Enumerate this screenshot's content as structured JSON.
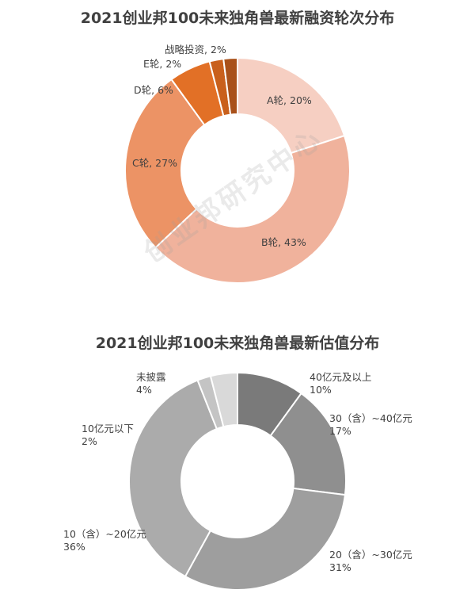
{
  "watermark": "创业邦研究中心",
  "chart_data": [
    {
      "type": "pie",
      "title": "2021创业邦100未来独角兽最新融资轮次分布",
      "slices": [
        {
          "label": "A轮",
          "value": 20,
          "text": "A轮, 20%",
          "color": "#f6cfc2"
        },
        {
          "label": "B轮",
          "value": 43,
          "text": "B轮, 43%",
          "color": "#f0b29c"
        },
        {
          "label": "C轮",
          "value": 27,
          "text": "C轮, 27%",
          "color": "#ec9365"
        },
        {
          "label": "D轮",
          "value": 6,
          "text": "D轮, 6%",
          "color": "#e27026"
        },
        {
          "label": "E轮",
          "value": 2,
          "text": "E轮, 2%",
          "color": "#c9601c"
        },
        {
          "label": "战略投资",
          "value": 2,
          "text": "战略投资, 2%",
          "color": "#a9511a"
        }
      ]
    },
    {
      "type": "pie",
      "title": "2021创业邦100未来独角兽最新估值分布",
      "slices": [
        {
          "label": "40亿元及以上",
          "value": 10,
          "text": [
            "40亿元及以上",
            "10%"
          ],
          "color": "#7a7a7a"
        },
        {
          "label": "30（含）~40亿元",
          "value": 17,
          "text": [
            "30（含）~40亿元",
            "17%"
          ],
          "color": "#8f8f8f"
        },
        {
          "label": "20（含）~30亿元",
          "value": 31,
          "text": [
            "20（含）~30亿元",
            "31%"
          ],
          "color": "#9e9e9e"
        },
        {
          "label": "10（含）~20亿元",
          "value": 36,
          "text": [
            "10（含）~20亿元",
            "36%"
          ],
          "color": "#ababab"
        },
        {
          "label": "10亿元以下",
          "value": 2,
          "text": [
            "10亿元以下",
            "2%"
          ],
          "color": "#c4c4c4"
        },
        {
          "label": "未披露",
          "value": 4,
          "text": [
            "未披露",
            "4%"
          ],
          "color": "#d9d9d9"
        }
      ]
    }
  ]
}
